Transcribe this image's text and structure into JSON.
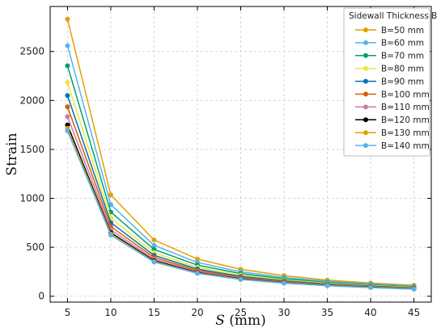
{
  "chart_data": {
    "type": "line",
    "xlabel_var": "S",
    "xlabel_unit": " (mm)",
    "ylabel": "Strain",
    "x": [
      5,
      10,
      15,
      20,
      25,
      30,
      35,
      40,
      45
    ],
    "xlim": [
      3,
      47
    ],
    "ylim": [
      -60,
      2960
    ],
    "xticks": [
      5,
      10,
      15,
      20,
      25,
      30,
      35,
      40,
      45
    ],
    "yticks": [
      0,
      500,
      1000,
      1500,
      2000,
      2500
    ],
    "grid": true,
    "legend_title": "Sidewall Thickness B",
    "legend_position": "top-right",
    "series": [
      {
        "name": "B=50 mm",
        "color": "#E69F00",
        "values": [
          2830,
          1035,
          575,
          380,
          275,
          210,
          165,
          135,
          112
        ]
      },
      {
        "name": "B=60 mm",
        "color": "#56B4E9",
        "values": [
          2560,
          935,
          520,
          345,
          250,
          192,
          152,
          125,
          103
        ]
      },
      {
        "name": "B=70 mm",
        "color": "#009E73",
        "values": [
          2355,
          860,
          478,
          318,
          232,
          178,
          142,
          117,
          96
        ]
      },
      {
        "name": "B=80 mm",
        "color": "#F0E442",
        "values": [
          2185,
          800,
          445,
          296,
          216,
          167,
          133,
          110,
          90
        ]
      },
      {
        "name": "B=90 mm",
        "color": "#0072B2",
        "values": [
          2050,
          752,
          418,
          278,
          203,
          158,
          126,
          104,
          85
        ]
      },
      {
        "name": "B=100 mm",
        "color": "#D55E00",
        "values": [
          1935,
          712,
          396,
          264,
          193,
          150,
          120,
          99,
          81
        ]
      },
      {
        "name": "B=110 mm",
        "color": "#CC79A7",
        "values": [
          1835,
          678,
          378,
          252,
          185,
          144,
          115,
          95,
          78
        ]
      },
      {
        "name": "B=120 mm",
        "color": "#000000",
        "values": [
          1750,
          650,
          363,
          242,
          178,
          139,
          111,
          92,
          76
        ]
      },
      {
        "name": "B=130 mm",
        "color": "#E69F00",
        "values": [
          1715,
          636,
          355,
          237,
          174,
          136,
          109,
          90,
          74
        ]
      },
      {
        "name": "B=140 mm",
        "color": "#56B4E9",
        "values": [
          1690,
          625,
          349,
          233,
          171,
          133,
          107,
          88,
          72
        ]
      }
    ]
  }
}
